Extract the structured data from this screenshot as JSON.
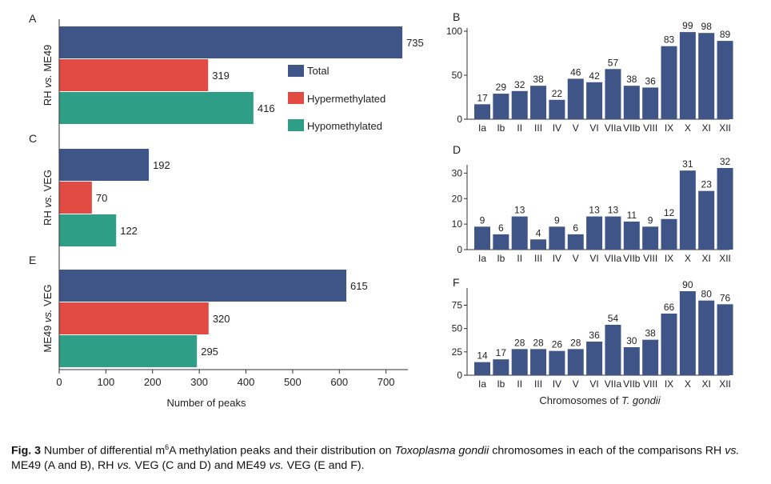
{
  "legend": {
    "total": "Total",
    "hyper": "Hypermethylated",
    "hypo": "Hypomethylated"
  },
  "colors": {
    "total": "#3f5588",
    "hyper": "#e14b43",
    "hypo": "#2e9e86"
  },
  "panel_letters": [
    "A",
    "B",
    "C",
    "D",
    "E",
    "F"
  ],
  "comparisons": [
    {
      "label_a": "RH ",
      "label_vs": "vs.",
      "label_b": " ME49"
    },
    {
      "label_a": "RH ",
      "label_vs": "vs.",
      "label_b": " VEG"
    },
    {
      "label_a": "ME49 ",
      "label_vs": "vs.",
      "label_b": " VEG"
    }
  ],
  "xaxis_left": {
    "label": "Number of peaks"
  },
  "xaxis_right": {
    "label_prefix": "Chromosomes of ",
    "label_italic": "T. gondii"
  },
  "caption": {
    "fig": "Fig. 3",
    "t1": "  Number of differential m",
    "sup": "6",
    "t2": "A methylation peaks and their distribution on ",
    "species": "Toxoplasma gondii",
    "t3": " chromosomes in each of the comparisons RH ",
    "vs1": "vs.",
    "t4": " ME49 (A and B), RH ",
    "vs2": "vs.",
    "t5": " VEG (C and D) and ME49 ",
    "vs3": "vs.",
    "t6": " VEG (E and F)."
  },
  "chart_data": [
    {
      "panel": "A",
      "type": "bar",
      "orientation": "horizontal",
      "comparison": "RH vs. ME49",
      "categories": [
        "Total",
        "Hypermethylated",
        "Hypomethylated"
      ],
      "values": [
        735,
        319,
        416
      ],
      "xlim": [
        0,
        760
      ],
      "xticks": [
        0,
        100,
        200,
        300,
        400,
        500,
        600,
        700
      ]
    },
    {
      "panel": "C",
      "type": "bar",
      "orientation": "horizontal",
      "comparison": "RH vs. VEG",
      "categories": [
        "Total",
        "Hypermethylated",
        "Hypomethylated"
      ],
      "values": [
        192,
        70,
        122
      ],
      "xlim": [
        0,
        760
      ]
    },
    {
      "panel": "E",
      "type": "bar",
      "orientation": "horizontal",
      "comparison": "ME49 vs. VEG",
      "categories": [
        "Total",
        "Hypermethylated",
        "Hypomethylated"
      ],
      "values": [
        615,
        320,
        295
      ],
      "xlim": [
        0,
        760
      ]
    },
    {
      "panel": "B",
      "type": "bar",
      "categories": [
        "Ia",
        "Ib",
        "II",
        "III",
        "IV",
        "V",
        "VI",
        "VIIa",
        "VIIb",
        "VIII",
        "IX",
        "X",
        "XI",
        "XII"
      ],
      "values": [
        17,
        29,
        32,
        38,
        22,
        46,
        42,
        57,
        38,
        36,
        83,
        99,
        98,
        89
      ],
      "ylim": [
        0,
        100
      ],
      "yticks": [
        0,
        50,
        100
      ]
    },
    {
      "panel": "D",
      "type": "bar",
      "categories": [
        "Ia",
        "Ib",
        "II",
        "III",
        "IV",
        "V",
        "VI",
        "VIIa",
        "VIIb",
        "VIII",
        "IX",
        "X",
        "XI",
        "XII"
      ],
      "values": [
        9,
        6,
        13,
        4,
        9,
        6,
        13,
        13,
        11,
        9,
        12,
        31,
        23,
        32
      ],
      "ylim": [
        0,
        32
      ],
      "yticks": [
        0,
        10,
        20,
        30
      ]
    },
    {
      "panel": "F",
      "type": "bar",
      "categories": [
        "Ia",
        "Ib",
        "II",
        "III",
        "IV",
        "V",
        "VI",
        "VIIa",
        "VIIb",
        "VIII",
        "IX",
        "X",
        "XI",
        "XII"
      ],
      "values": [
        14,
        17,
        28,
        28,
        26,
        28,
        36,
        54,
        30,
        38,
        66,
        90,
        80,
        76
      ],
      "ylim": [
        0,
        90
      ],
      "yticks": [
        0,
        25,
        50,
        75
      ]
    }
  ]
}
